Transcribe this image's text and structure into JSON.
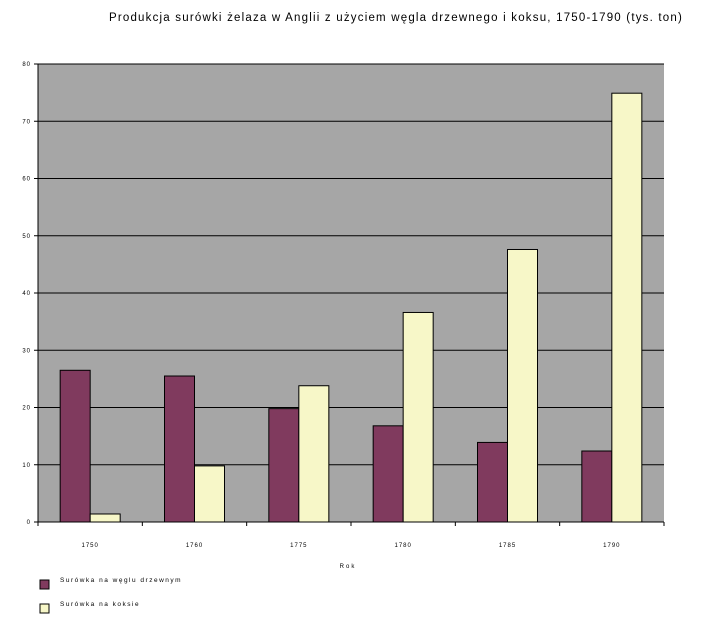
{
  "chart_data": {
    "type": "bar",
    "title": "Produkcja surówki żelaza w Anglii z użyciem węgla drzewnego i koksu, 1750-1790 (tys. ton)",
    "xlabel": "Rok",
    "ylabel": "",
    "categories": [
      "1750",
      "1760",
      "1775",
      "1780",
      "1785",
      "1790"
    ],
    "series": [
      {
        "name": "Surówka na węglu drzewnym",
        "color": "#803a5e",
        "values": [
          26.5,
          25.5,
          19.8,
          16.8,
          13.9,
          12.4
        ]
      },
      {
        "name": "Surówka na koksie",
        "color": "#f7f7c8",
        "values": [
          1.4,
          9.8,
          23.8,
          36.6,
          47.6,
          74.9
        ]
      }
    ],
    "ylim": [
      0,
      80
    ],
    "yticks": [
      0,
      10,
      20,
      30,
      40,
      50,
      60,
      70,
      80
    ],
    "grid": true,
    "plot_background": "#a6a6a6",
    "legend_position": "bottom-left"
  }
}
